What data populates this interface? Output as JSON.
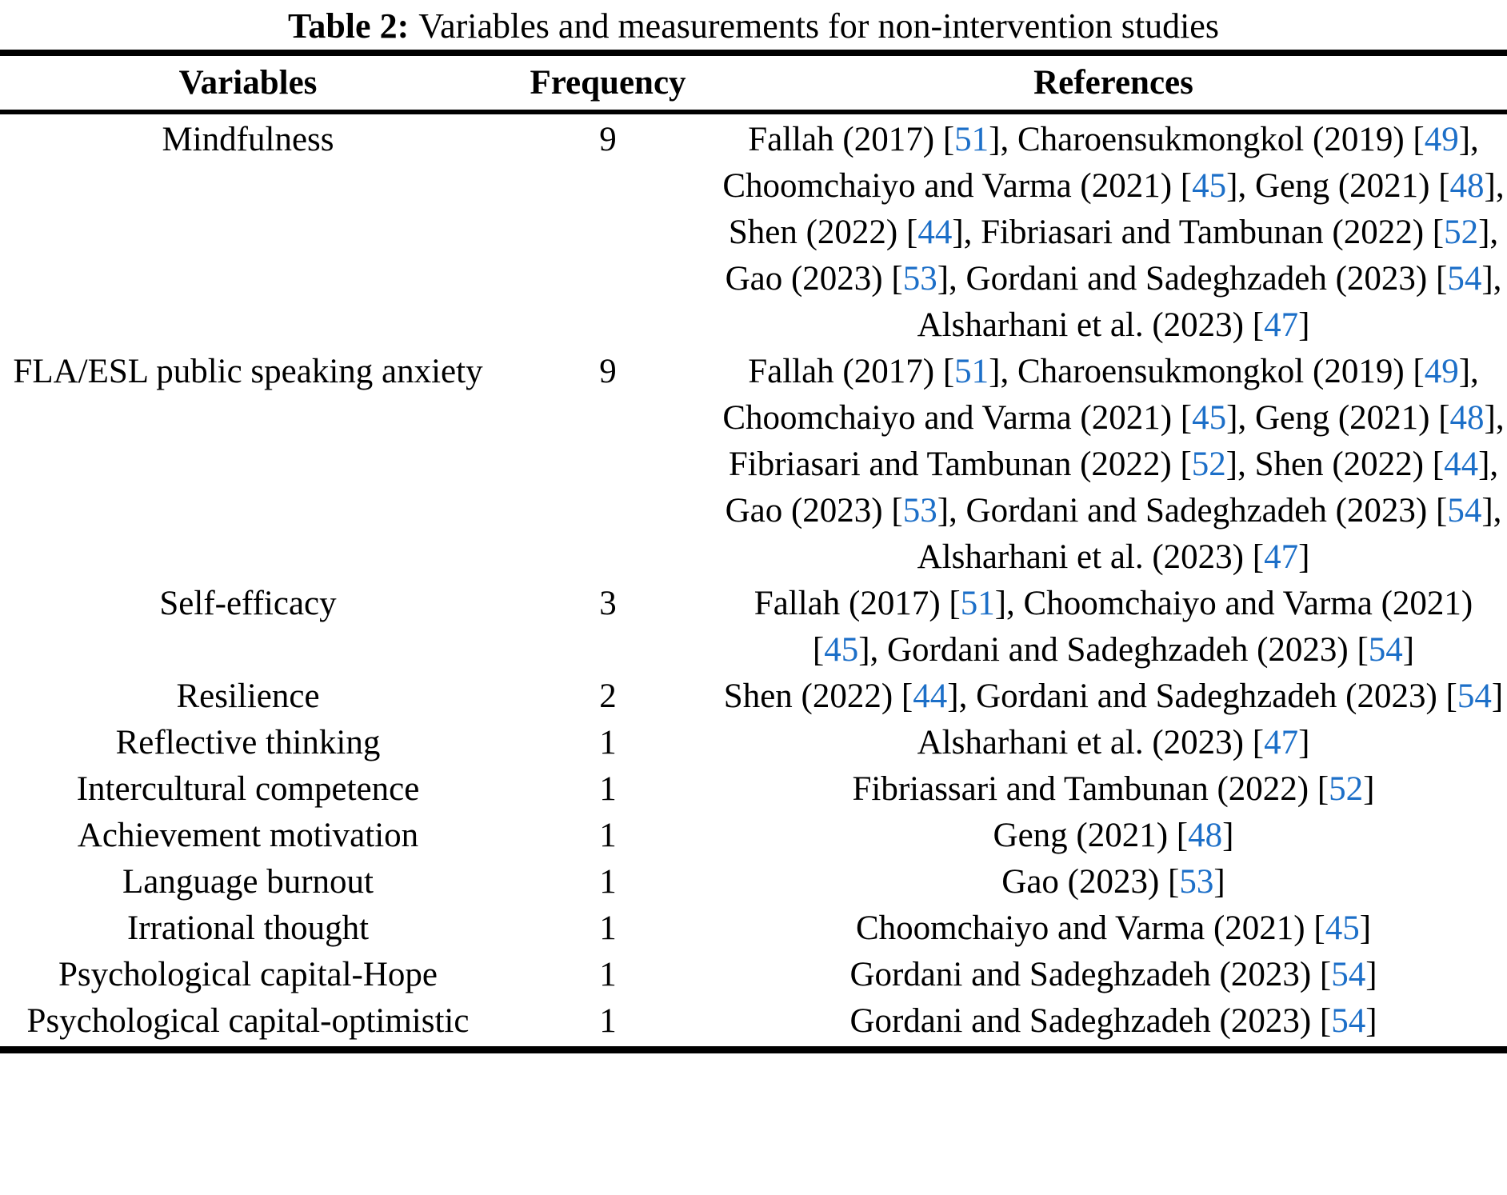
{
  "caption": {
    "label": "Table 2:",
    "text": "Variables and measurements for non-intervention studies"
  },
  "columns": {
    "variables": "Variables",
    "frequency": "Frequency",
    "references": "References"
  },
  "colors": {
    "text": "#000000",
    "citation_link": "#1c6fc8"
  },
  "rows": [
    {
      "variable": "Mindfulness",
      "frequency": "9",
      "references": "Fallah (2017) [51], Charoensukmongkol (2019) [49], Choomchaiyo and Varma (2021) [45], Geng (2021) [48], Shen (2022) [44], Fibriasari and Tambunan (2022) [52], Gao (2023) [53], Gordani and Sadeghzadeh (2023) [54], Alsharhani et al. (2023) [47]"
    },
    {
      "variable": "FLA/ESL public speaking anxiety",
      "frequency": "9",
      "references": "Fallah (2017) [51], Charoensukmongkol (2019) [49], Choomchaiyo and Varma (2021) [45], Geng (2021) [48], Fibriasari and Tambunan (2022) [52], Shen (2022) [44], Gao (2023) [53], Gordani and Sadeghzadeh (2023) [54], Alsharhani et al. (2023) [47]"
    },
    {
      "variable": "Self-efficacy",
      "frequency": "3",
      "references": "Fallah (2017) [51], Choomchaiyo and Varma (2021) [45], Gordani and Sadeghzadeh (2023) [54]"
    },
    {
      "variable": "Resilience",
      "frequency": "2",
      "references": "Shen (2022) [44], Gordani and Sadeghzadeh (2023) [54]"
    },
    {
      "variable": "Reflective thinking",
      "frequency": "1",
      "references": "Alsharhani et al. (2023) [47]"
    },
    {
      "variable": "Intercultural competence",
      "frequency": "1",
      "references": "Fibriassari and Tambunan (2022) [52]"
    },
    {
      "variable": "Achievement motivation",
      "frequency": "1",
      "references": "Geng (2021) [48]"
    },
    {
      "variable": "Language burnout",
      "frequency": "1",
      "references": "Gao (2023) [53]"
    },
    {
      "variable": "Irrational thought",
      "frequency": "1",
      "references": "Choomchaiyo and Varma (2021) [45]"
    },
    {
      "variable": "Psychological capital-Hope",
      "frequency": "1",
      "references": "Gordani and Sadeghzadeh (2023) [54]"
    },
    {
      "variable": "Psychological capital-optimistic",
      "frequency": "1",
      "references": "Gordani and Sadeghzadeh (2023) [54]"
    }
  ]
}
